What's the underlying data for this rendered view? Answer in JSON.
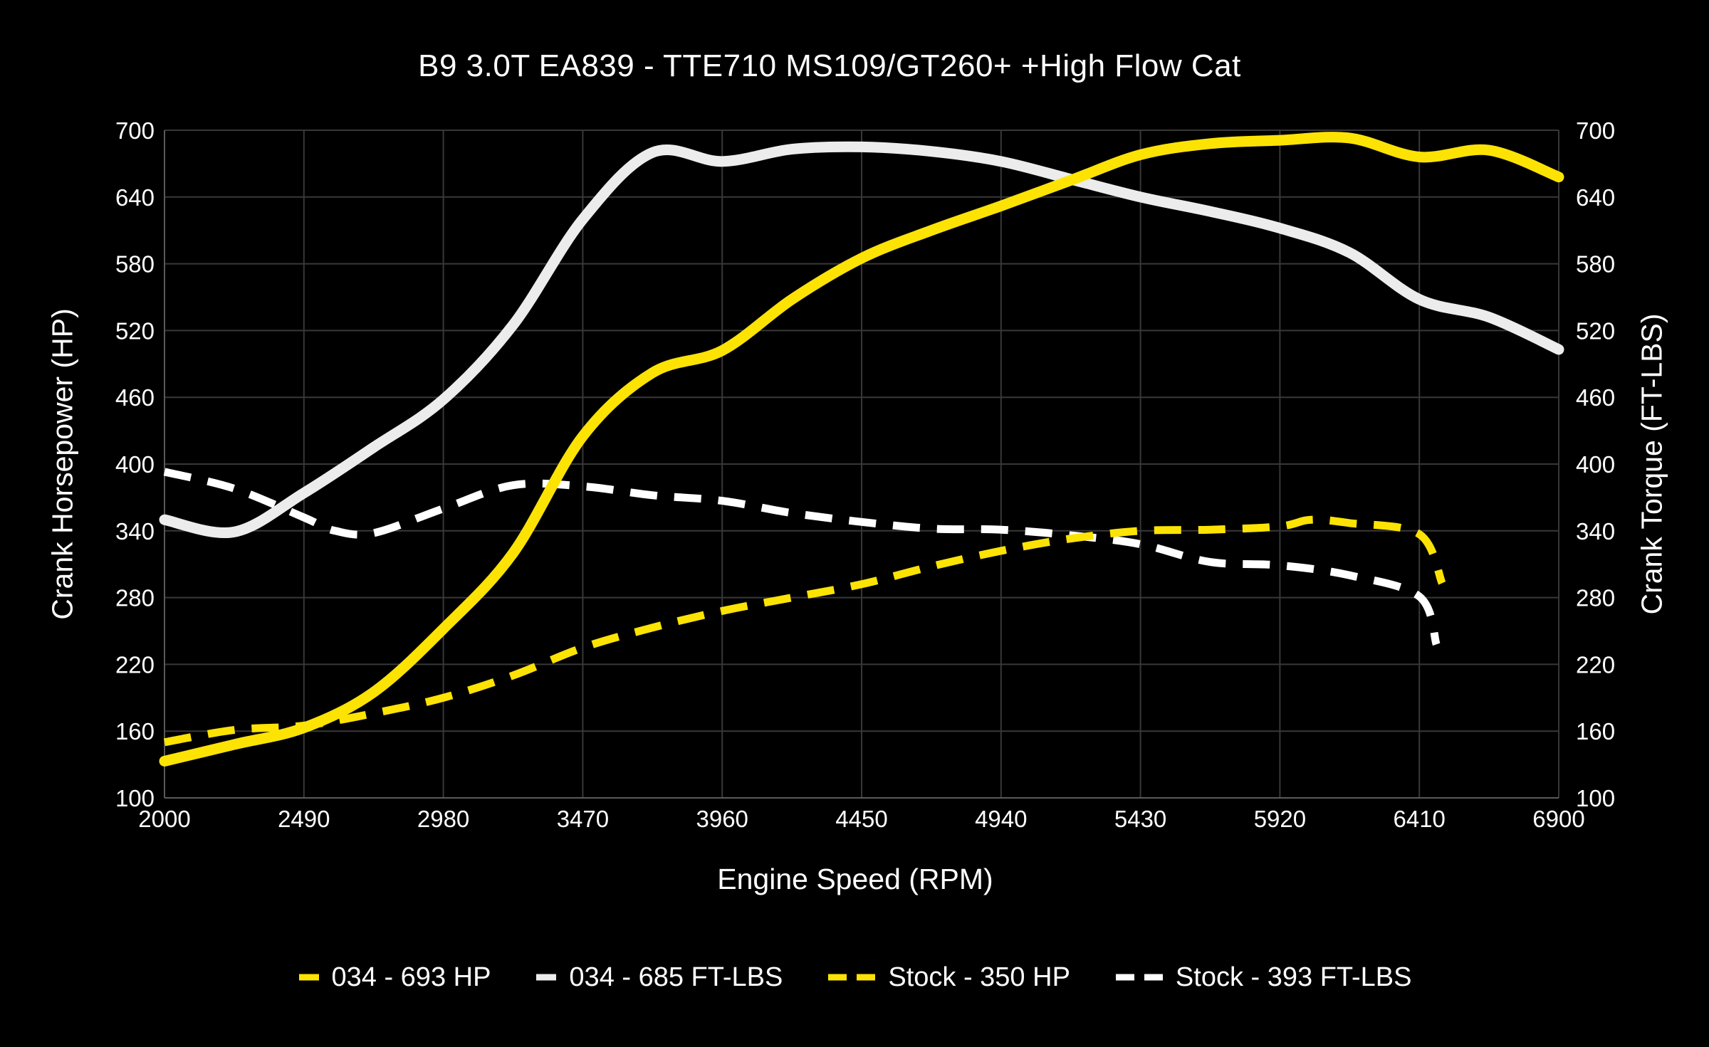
{
  "title": "B9 3.0T EA839 - TTE710 MS109/GT260+ +High Flow Cat",
  "axes": {
    "x": {
      "label": "Engine Speed (RPM)",
      "min": 2000,
      "max": 6900,
      "ticks": [
        2000,
        2490,
        2980,
        3470,
        3960,
        4450,
        4940,
        5430,
        5920,
        6410,
        6900
      ]
    },
    "y_left": {
      "label": "Crank Horsepower (HP)",
      "min": 100,
      "max": 700,
      "ticks": [
        100,
        160,
        220,
        280,
        340,
        400,
        460,
        520,
        580,
        640,
        700
      ]
    },
    "y_right": {
      "label": "Crank Torque (FT-LBS)",
      "min": 100,
      "max": 700,
      "ticks": [
        100,
        160,
        220,
        280,
        340,
        400,
        460,
        520,
        580,
        640,
        700
      ]
    }
  },
  "colors": {
    "background": "#000000",
    "grid": "#383838",
    "axis": "#5a5a5a",
    "text": "#ffffff",
    "yellow": "#fce303",
    "white_solid": "#ececec",
    "white_dashed": "#ffffff"
  },
  "legend": [
    {
      "label": "034 - 693 HP",
      "color": "#fce303",
      "style": "solid"
    },
    {
      "label": "034 - 685 FT-LBS",
      "color": "#ececec",
      "style": "solid"
    },
    {
      "label": "Stock - 350 HP",
      "color": "#fce303",
      "style": "dashed"
    },
    {
      "label": "Stock - 393 FT-LBS",
      "color": "#ffffff",
      "style": "dashed"
    }
  ],
  "chart_data": {
    "type": "line",
    "title": "B9 3.0T EA839 - TTE710 MS109/GT260+ +High Flow Cat",
    "xlabel": "Engine Speed (RPM)",
    "ylabel_left": "Crank Horsepower (HP)",
    "ylabel_right": "Crank Torque (FT-LBS)",
    "xlim": [
      2000,
      6900
    ],
    "ylim": [
      100,
      700
    ],
    "grid": true,
    "legend_position": "bottom",
    "series": [
      {
        "name": "034 - 693 HP",
        "axis": "left",
        "unit": "HP",
        "peak": 693,
        "color": "#fce303",
        "style": "solid",
        "x": [
          2000,
          2245,
          2490,
          2735,
          2980,
          3225,
          3470,
          3715,
          3960,
          4205,
          4450,
          4695,
          4940,
          5185,
          5430,
          5675,
          5920,
          6165,
          6410,
          6655,
          6900
        ],
        "values": [
          133,
          148,
          163,
          195,
          252,
          320,
          425,
          482,
          502,
          548,
          585,
          610,
          632,
          655,
          678,
          688,
          691,
          693,
          676,
          682,
          658
        ]
      },
      {
        "name": "034 - 685 FT-LBS",
        "axis": "right",
        "unit": "FT-LBS",
        "peak": 685,
        "color": "#ececec",
        "style": "solid",
        "x": [
          2000,
          2245,
          2490,
          2735,
          2980,
          3225,
          3470,
          3715,
          3960,
          4205,
          4450,
          4695,
          4940,
          5185,
          5430,
          5675,
          5920,
          6165,
          6410,
          6655,
          6900
        ],
        "values": [
          350,
          339,
          374,
          415,
          458,
          525,
          620,
          680,
          672,
          683,
          685,
          681,
          672,
          656,
          640,
          627,
          612,
          590,
          548,
          532,
          503
        ]
      },
      {
        "name": "Stock - 350 HP",
        "axis": "left",
        "unit": "HP",
        "peak": 350,
        "color": "#fce303",
        "style": "dashed",
        "x": [
          2000,
          2245,
          2490,
          2735,
          2980,
          3225,
          3470,
          3715,
          3960,
          4205,
          4450,
          4695,
          4940,
          5185,
          5430,
          5675,
          5920,
          6030,
          6165,
          6410,
          6490
        ],
        "values": [
          150,
          161,
          165,
          176,
          190,
          210,
          235,
          253,
          268,
          280,
          292,
          308,
          322,
          333,
          340,
          341,
          344,
          350,
          347,
          337,
          293
        ]
      },
      {
        "name": "Stock - 393 FT-LBS",
        "axis": "right",
        "unit": "FT-LBS",
        "peak": 393,
        "color": "#ffffff",
        "style": "dashed",
        "x": [
          2000,
          2245,
          2490,
          2600,
          2735,
          2980,
          3225,
          3470,
          3715,
          3960,
          4205,
          4450,
          4695,
          4940,
          5185,
          5430,
          5675,
          5920,
          6165,
          6410,
          6470
        ],
        "values": [
          393,
          378,
          352,
          340,
          338,
          360,
          381,
          380,
          372,
          367,
          356,
          348,
          342,
          341,
          336,
          328,
          312,
          309,
          300,
          281,
          238
        ]
      }
    ]
  }
}
